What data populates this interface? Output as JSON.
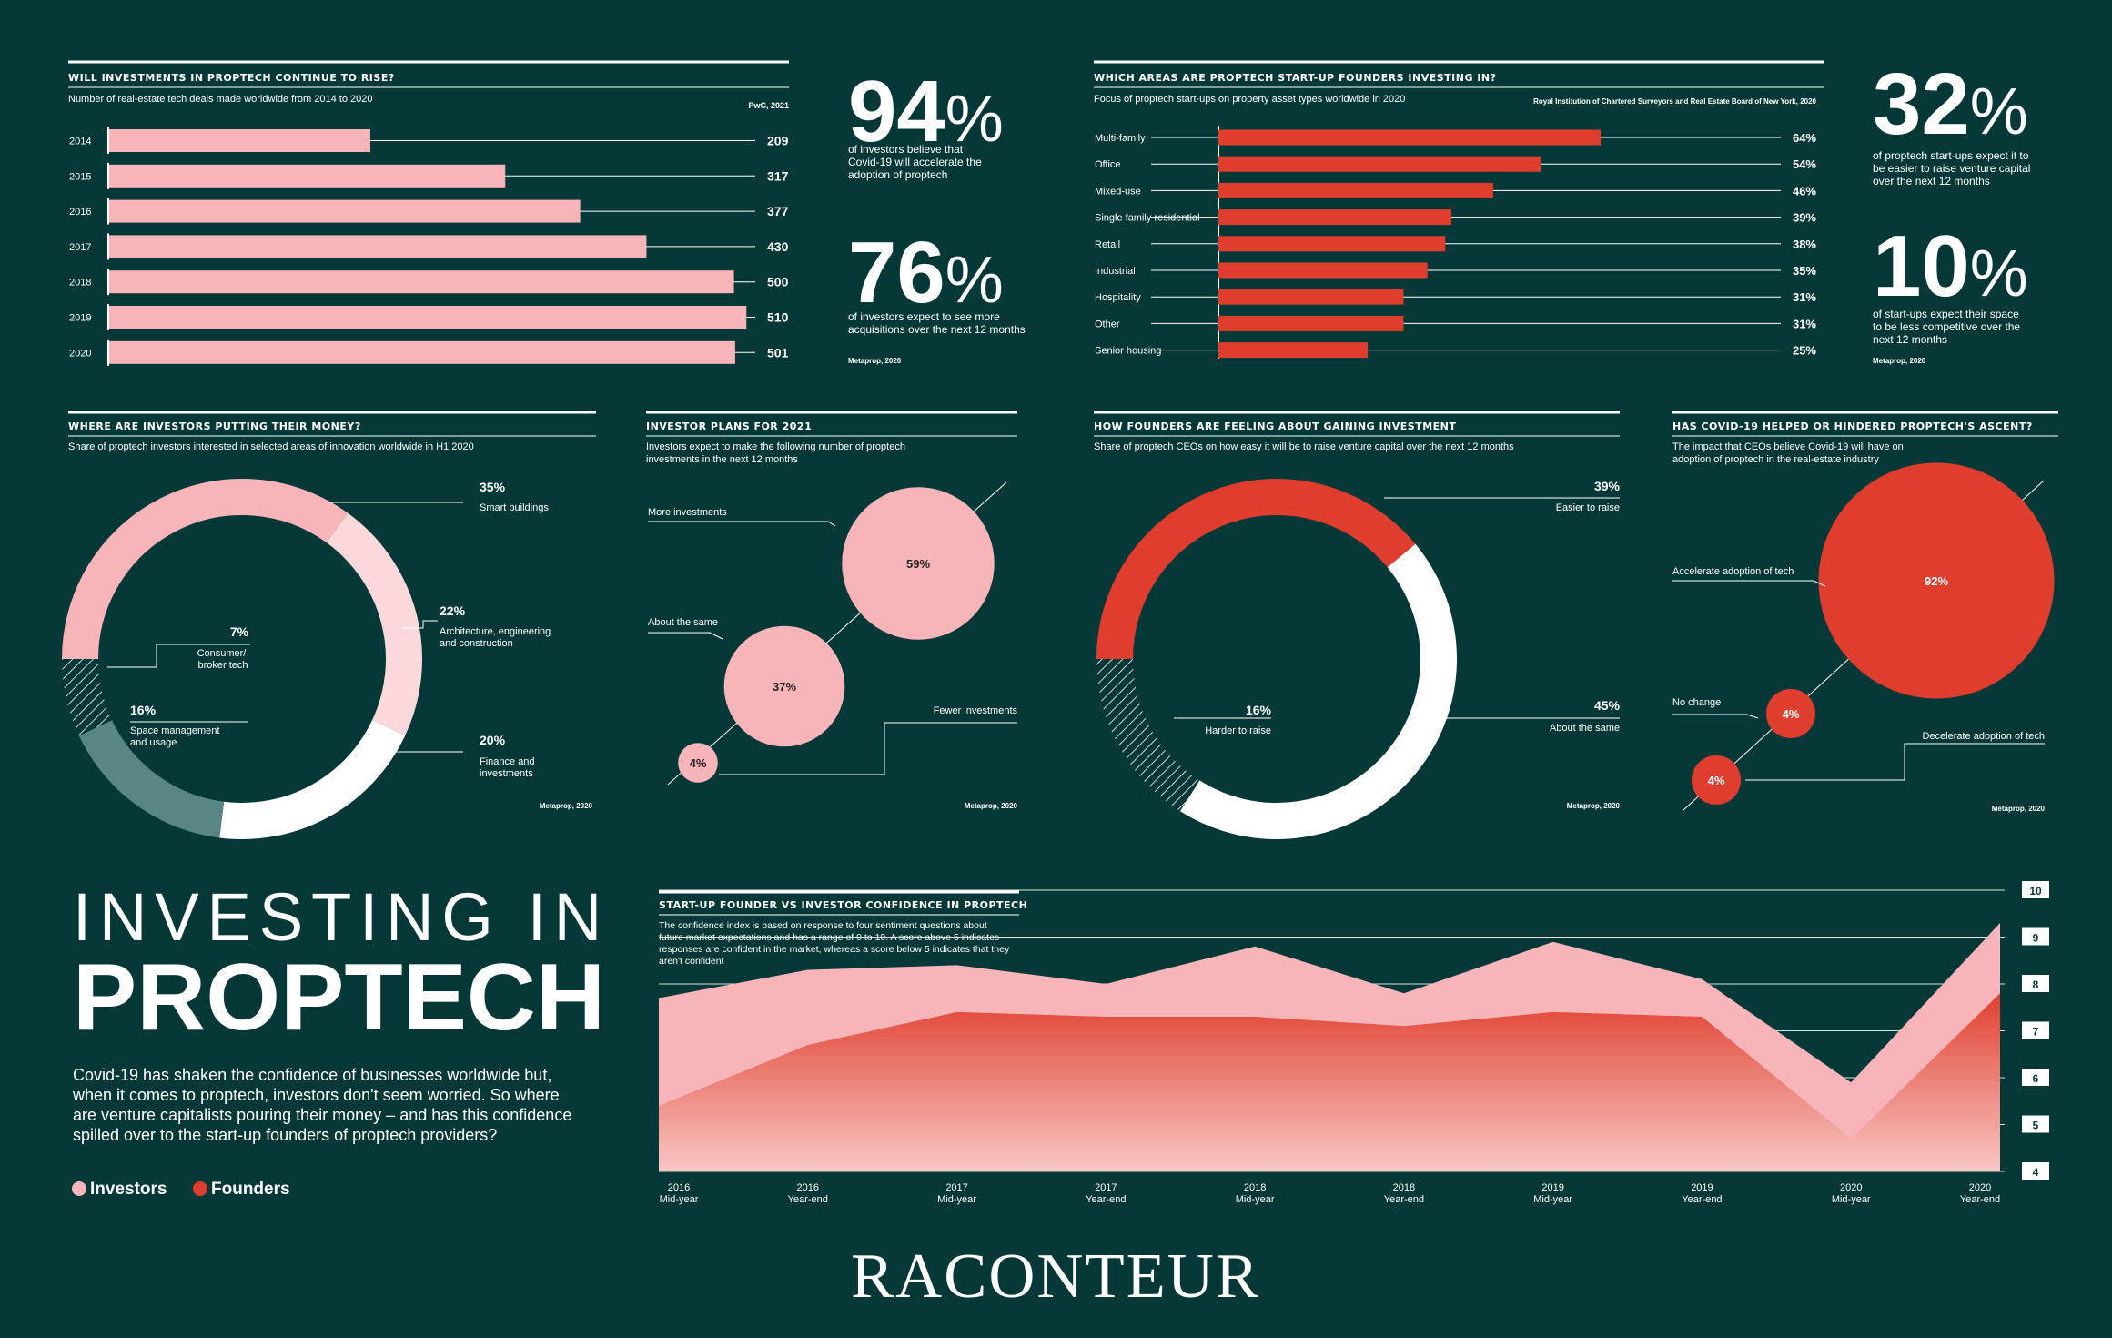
{
  "colors": {
    "background": "#073838",
    "investors": "#f7b5ba",
    "founders": "#df3d2d",
    "grey_segment": "#5a8587",
    "white": "#ffffff"
  },
  "headline": {
    "line1": "INVESTING IN",
    "line2": "PROPTECH",
    "intro_lines": [
      "Covid-19 has shaken the confidence of businesses worldwide but,",
      "when it comes to proptech, investors don't seem worried. So where",
      "are venture capitalists pouring their money – and has this confidence",
      "spilled over to the start-up founders of proptech providers?"
    ],
    "legend": {
      "investors": "Investors",
      "founders": "Founders"
    }
  },
  "brand": "RACONTEUR",
  "stats": [
    {
      "value": "94",
      "unit": "%",
      "lines": [
        "of investors believe that",
        "Covid-19 will accelerate the",
        "adoption of proptech"
      ]
    },
    {
      "value": "76",
      "unit": "%",
      "lines": [
        "of investors expect to see more",
        "acquisitions over the next 12 months"
      ],
      "source": "Metaprop, 2020"
    },
    {
      "value": "32",
      "unit": "%",
      "lines": [
        "of proptech start-ups expect it to",
        "be easier to raise venture capital",
        "over the next 12 months"
      ]
    },
    {
      "value": "10",
      "unit": "%",
      "lines": [
        "of start-ups expect their space",
        "to be less competitive over the",
        "next 12 months"
      ],
      "source": "Metaprop, 2020"
    }
  ],
  "chart_data": [
    {
      "id": "deals",
      "type": "bar",
      "title": "WILL INVESTMENTS IN PROPTECH CONTINUE TO RISE?",
      "subtitle": "Number of real-estate tech deals made worldwide from 2014 to 2020",
      "source": "PwC, 2021",
      "categories": [
        "2014",
        "2015",
        "2016",
        "2017",
        "2018",
        "2019",
        "2020"
      ],
      "values": [
        209,
        317,
        377,
        430,
        500,
        510,
        501
      ],
      "labels": [
        "209",
        "317",
        "377",
        "430",
        "500",
        "510",
        "501"
      ],
      "color": "#f7b5ba"
    },
    {
      "id": "areas",
      "type": "bar",
      "title": "WHICH AREAS ARE PROPTECH START-UP FOUNDERS INVESTING IN?",
      "subtitle": "Focus of proptech start-ups on property asset types worldwide in 2020",
      "source": "Royal Institution of Chartered Surveyors and Real Estate Board of New York, 2020",
      "categories": [
        "Multi-family",
        "Office",
        "Mixed-use",
        "Single family residential",
        "Retail",
        "Industrial",
        "Hospitality",
        "Other",
        "Senior housing"
      ],
      "values": [
        64,
        54,
        46,
        39,
        38,
        35,
        31,
        31,
        25
      ],
      "labels": [
        "64%",
        "54%",
        "46%",
        "39%",
        "38%",
        "35%",
        "31%",
        "31%",
        "25%"
      ],
      "color": "#df3d2d"
    },
    {
      "id": "money",
      "type": "pie",
      "title": "WHERE ARE INVESTORS PUTTING THEIR MONEY?",
      "subtitle": "Share of proptech investors interested in selected areas of innovation worldwide in H1 2020",
      "source": "Metaprop, 2020",
      "slices": [
        {
          "label": "Smart buildings",
          "value": 35,
          "text": "35%",
          "color": "#f7b5ba",
          "lines": [
            "Smart buildings"
          ]
        },
        {
          "label": "Architecture, engineering and construction",
          "value": 22,
          "text": "22%",
          "color": "#fbd8da",
          "lines": [
            "Architecture, engineering",
            "and construction"
          ]
        },
        {
          "label": "Finance and investments",
          "value": 20,
          "text": "20%",
          "color": "#ffffff",
          "lines": [
            "Finance and",
            "investments"
          ]
        },
        {
          "label": "Space management and usage",
          "value": 16,
          "text": "16%",
          "color": "#5a8587",
          "lines": [
            "Space management",
            "and usage"
          ]
        },
        {
          "label": "Consumer/broker tech",
          "value": 7,
          "text": "7%",
          "color": "hatch",
          "lines": [
            "Consumer/",
            "broker tech"
          ]
        }
      ]
    },
    {
      "id": "plans",
      "type": "scatter",
      "title": "INVESTOR PLANS FOR 2021",
      "subtitle_lines": [
        "Investors expect to make the following number of proptech",
        "investments in the next 12 months"
      ],
      "source": "Metaprop, 2020",
      "points": [
        {
          "label": "More investments",
          "value": 59,
          "text": "59%"
        },
        {
          "label": "About the same",
          "value": 37,
          "text": "37%"
        },
        {
          "label": "Fewer investments",
          "value": 4,
          "text": "4%"
        }
      ],
      "color": "#f7b5ba"
    },
    {
      "id": "feeling",
      "type": "pie",
      "title": "HOW FOUNDERS ARE FEELING ABOUT GAINING INVESTMENT",
      "subtitle": "Share of proptech CEOs on how easy it will be to raise venture capital over the next 12 months",
      "source": "Metaprop, 2020",
      "slices": [
        {
          "label": "Easier to raise",
          "value": 39,
          "text": "39%",
          "color": "#df3d2d",
          "lines": [
            "Easier to raise"
          ]
        },
        {
          "label": "About the same",
          "value": 45,
          "text": "45%",
          "color": "#ffffff",
          "lines": [
            "About the same"
          ]
        },
        {
          "label": "Harder to raise",
          "value": 16,
          "text": "16%",
          "color": "hatch",
          "lines": [
            "Harder to raise"
          ]
        }
      ]
    },
    {
      "id": "covid",
      "type": "scatter",
      "title": "HAS COVID-19 HELPED OR HINDERED PROPTECH'S ASCENT?",
      "subtitle_lines": [
        "The impact that CEOs believe Covid-19 will have on",
        "adoption of proptech in the real-estate industry"
      ],
      "source": "Metaprop, 2020",
      "points": [
        {
          "label": "Accelerate adoption of tech",
          "value": 92,
          "text": "92%"
        },
        {
          "label": "No change",
          "value": 4,
          "text": "4%"
        },
        {
          "label": "Decelerate adoption of tech",
          "value": 4,
          "text": "4%"
        }
      ],
      "color": "#df3d2d"
    },
    {
      "id": "confidence",
      "type": "area",
      "title": "START-UP FOUNDER VS INVESTOR CONFIDENCE IN PROPTECH",
      "subtitle_lines": [
        "The confidence index is based on response to four sentiment questions about",
        "future market expectations and has a range of 0 to 10. A score above 5 indicates",
        "responses are confident in the market, whereas a score below 5 indicates that they",
        "aren't confident"
      ],
      "categories": [
        [
          "2016",
          "Mid-year"
        ],
        [
          "2016",
          "Year-end"
        ],
        [
          "2017",
          "Mid-year"
        ],
        [
          "2017",
          "Year-end"
        ],
        [
          "2018",
          "Mid-year"
        ],
        [
          "2018",
          "Year-end"
        ],
        [
          "2019",
          "Mid-year"
        ],
        [
          "2019",
          "Year-end"
        ],
        [
          "2020",
          "Mid-year"
        ],
        [
          "2020",
          "Year-end"
        ]
      ],
      "series": [
        {
          "name": "Investors",
          "color": "#f7b5ba",
          "values": [
            7.7,
            8.3,
            8.4,
            8.0,
            8.8,
            7.8,
            8.9,
            8.1,
            5.9,
            9.3
          ]
        },
        {
          "name": "Founders",
          "color": "#df3d2d",
          "values": [
            5.4,
            6.7,
            7.4,
            7.3,
            7.3,
            7.1,
            7.4,
            7.3,
            4.7,
            7.8
          ]
        }
      ],
      "ylim": [
        4,
        10
      ],
      "yticks": [
        "10",
        "9",
        "8",
        "7",
        "6",
        "5",
        "4"
      ]
    }
  ]
}
